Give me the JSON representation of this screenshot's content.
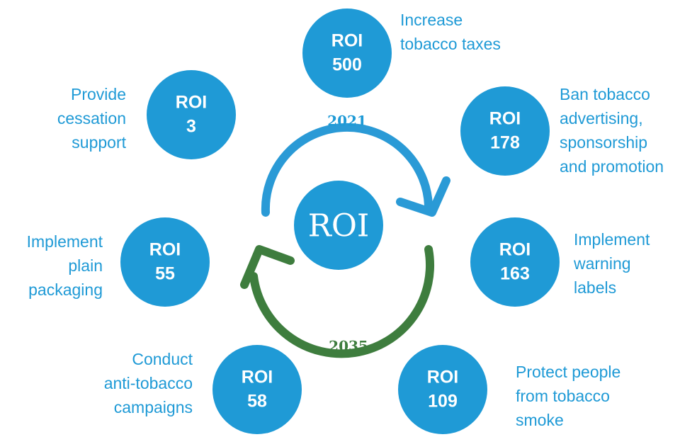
{
  "center": {
    "label": "ROI"
  },
  "years": {
    "start": "2021",
    "end": "2035"
  },
  "nodes": [
    {
      "label": "ROI",
      "value": 500,
      "text": [
        "Increase",
        "tobacco taxes"
      ]
    },
    {
      "label": "ROI",
      "value": 178,
      "text": [
        "Ban tobacco",
        "advertising,",
        "sponsorship",
        "and promotion"
      ]
    },
    {
      "label": "ROI",
      "value": 163,
      "text": [
        "Implement",
        "warning",
        "labels"
      ]
    },
    {
      "label": "ROI",
      "value": 109,
      "text": [
        "Protect people",
        "from tobacco",
        "smoke"
      ]
    },
    {
      "label": "ROI",
      "value": 58,
      "text": [
        "Conduct",
        "anti-tobacco",
        "campaigns"
      ]
    },
    {
      "label": "ROI",
      "value": 55,
      "text": [
        "Implement",
        "plain",
        "packaging"
      ]
    },
    {
      "label": "ROI",
      "value": 3,
      "text": [
        "Provide",
        "cessation",
        "support"
      ]
    }
  ]
}
